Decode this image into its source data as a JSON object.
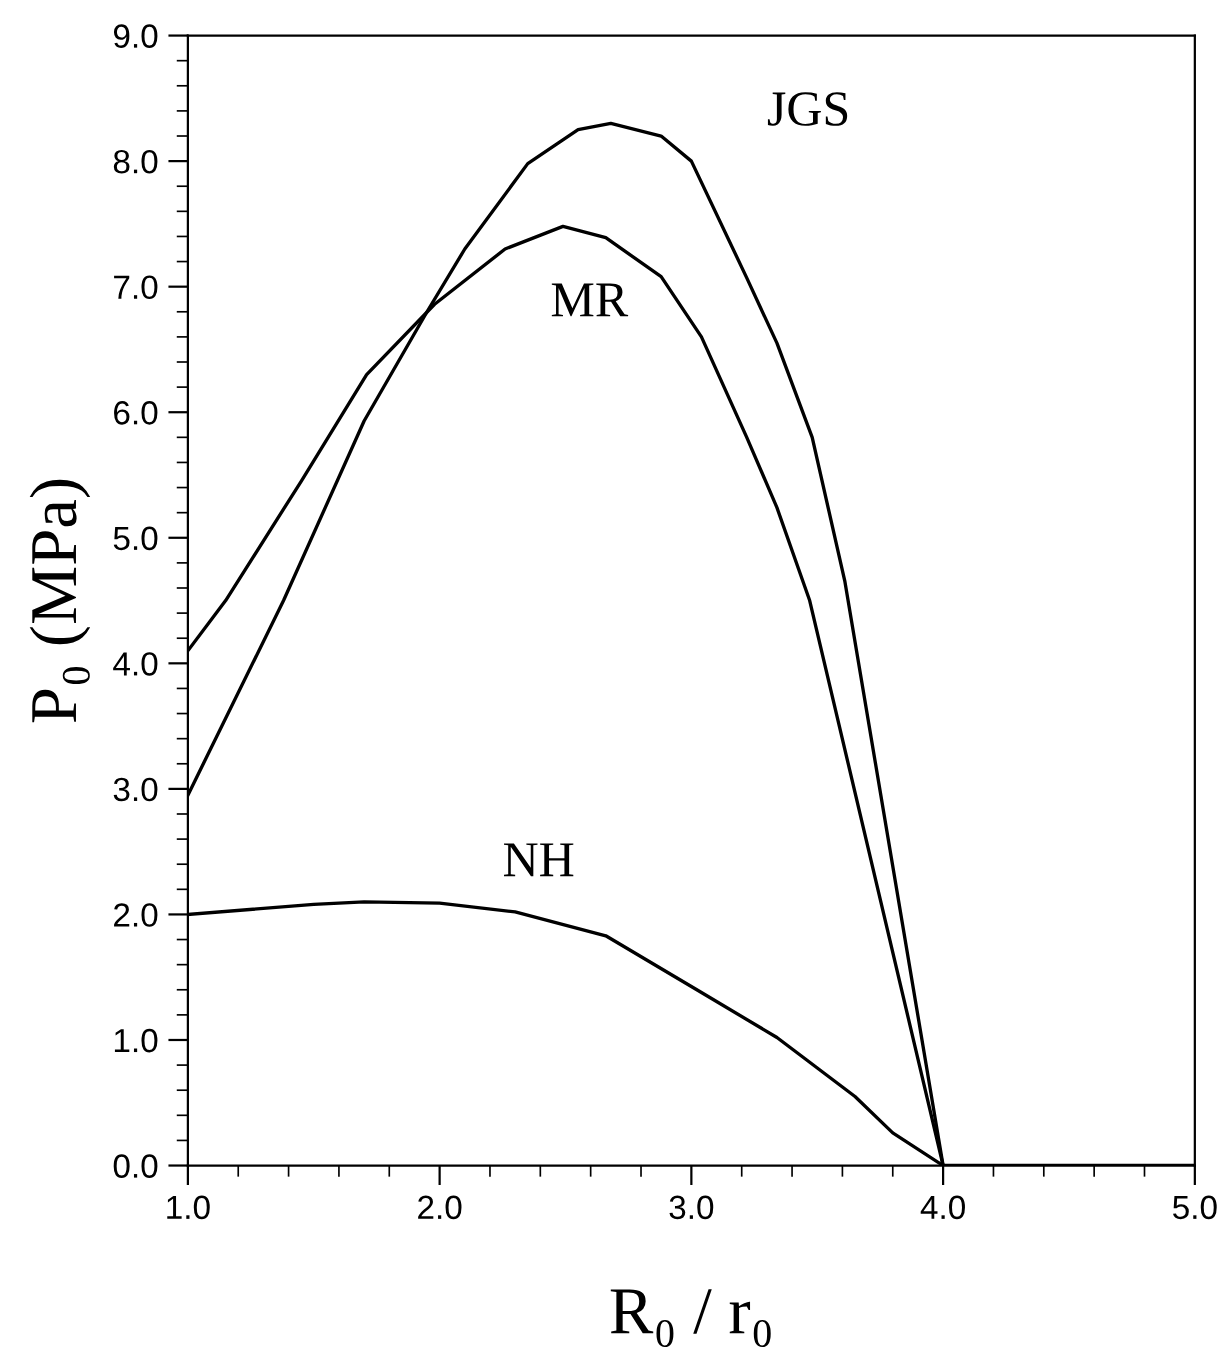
{
  "chart_data": {
    "type": "line",
    "xlabel": "R₀ / r₀",
    "ylabel": "P₀ (MPa)",
    "xlim": [
      1.0,
      5.0
    ],
    "ylim": [
      0.0,
      9.0
    ],
    "xticks": [
      {
        "value": 1.0,
        "label": "1.0"
      },
      {
        "value": 2.0,
        "label": "2.0"
      },
      {
        "value": 3.0,
        "label": "3.0"
      },
      {
        "value": 4.0,
        "label": "4.0"
      },
      {
        "value": 5.0,
        "label": "5.0"
      }
    ],
    "yticks": [
      {
        "value": 0.0,
        "label": "0.0"
      },
      {
        "value": 1.0,
        "label": "1.0"
      },
      {
        "value": 2.0,
        "label": "2.0"
      },
      {
        "value": 3.0,
        "label": "3.0"
      },
      {
        "value": 4.0,
        "label": "4.0"
      },
      {
        "value": 5.0,
        "label": "5.0"
      },
      {
        "value": 6.0,
        "label": "6.0"
      },
      {
        "value": 7.0,
        "label": "7.0"
      },
      {
        "value": 8.0,
        "label": "8.0"
      },
      {
        "value": 9.0,
        "label": "9.0"
      }
    ],
    "grid": false,
    "legend": false,
    "marker": "none",
    "line_style": "solid",
    "series": [
      {
        "name": "JGS",
        "color": "#000000",
        "x": [
          1.0,
          1.38,
          1.7,
          1.95,
          2.1,
          2.35,
          2.55,
          2.68,
          2.88,
          3.0,
          3.22,
          3.34,
          3.48,
          3.61,
          4.0
        ],
        "values": [
          2.95,
          4.5,
          5.93,
          6.8,
          7.3,
          7.98,
          8.25,
          8.3,
          8.2,
          8.0,
          7.07,
          6.55,
          5.8,
          4.65,
          0.0
        ]
      },
      {
        "name": "MR",
        "color": "#000000",
        "x": [
          1.0,
          1.15,
          1.45,
          1.71,
          1.98,
          2.26,
          2.49,
          2.66,
          2.88,
          3.04,
          3.22,
          3.34,
          3.47,
          4.0
        ],
        "values": [
          4.1,
          4.5,
          5.45,
          6.3,
          6.86,
          7.3,
          7.48,
          7.39,
          7.08,
          6.6,
          5.8,
          5.24,
          4.5,
          0.0
        ]
      },
      {
        "name": "NH",
        "color": "#000000",
        "x": [
          1.0,
          1.5,
          1.7,
          2.0,
          2.3,
          2.66,
          3.03,
          3.34,
          3.65,
          3.8,
          4.0,
          5.0
        ],
        "values": [
          2.0,
          2.08,
          2.1,
          2.09,
          2.02,
          1.83,
          1.39,
          1.02,
          0.55,
          0.26,
          0.0,
          0.0
        ]
      }
    ]
  }
}
